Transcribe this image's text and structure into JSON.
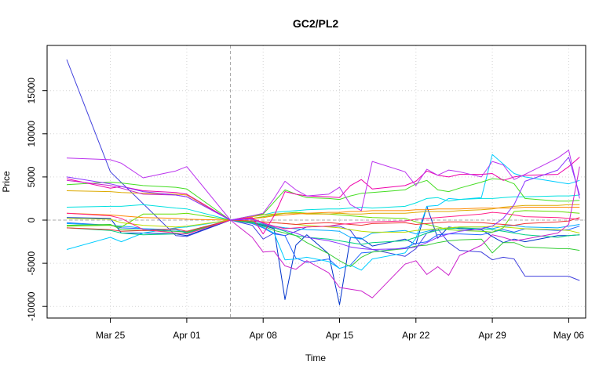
{
  "chart_data": {
    "type": "line",
    "title": "GC2/PL2",
    "xlabel": "Time",
    "ylabel": "Price",
    "x_ticks": [
      "Mar 25",
      "Apr 01",
      "Apr 08",
      "Apr 15",
      "Apr 22",
      "Apr 29",
      "May 06"
    ],
    "y_ticks": [
      -10000,
      -5000,
      0,
      5000,
      10000,
      15000
    ],
    "ylim": [
      -11500,
      20500
    ],
    "grid": true,
    "reference_lines": {
      "vertical_at": "Apr 05",
      "horizontal_at": 0
    },
    "x": [
      "Mar 21",
      "Mar 24",
      "Mar 25",
      "Mar 26",
      "Mar 27",
      "Mar 28",
      "Mar 31",
      "Apr 01",
      "Apr 02",
      "Apr 03",
      "Apr 04",
      "Apr 05",
      "Apr 07",
      "Apr 08",
      "Apr 09",
      "Apr 10",
      "Apr 11",
      "Apr 12",
      "Apr 14",
      "Apr 15",
      "Apr 16",
      "Apr 17",
      "Apr 18",
      "Apr 21",
      "Apr 22",
      "Apr 23",
      "Apr 24",
      "Apr 25",
      "Apr 26",
      "Apr 28",
      "Apr 29",
      "Apr 30",
      "May 01",
      "May 02",
      "May 05",
      "May 06",
      "May 07"
    ],
    "series": [
      {
        "color": "#4040dd",
        "values": [
          18600,
          null,
          5600,
          null,
          null,
          null,
          -1800,
          -1900,
          null,
          null,
          null,
          0,
          -600,
          -2200,
          -1500,
          -1800,
          -1300,
          -800,
          -700,
          -700,
          -1200,
          -2900,
          -3400,
          -4200,
          -3300,
          -1500,
          -1000,
          -2600,
          -3500,
          -3700,
          -4600,
          -4300,
          -4500,
          -6500,
          -6500,
          -6500,
          -7000
        ]
      },
      {
        "color": "#0033cc",
        "values": [
          300,
          null,
          200,
          -1500,
          null,
          -1500,
          -1600,
          -1800,
          null,
          null,
          null,
          0,
          -300,
          -600,
          -1000,
          -9200,
          -2900,
          -1700,
          -3900,
          -9800,
          -2000,
          -2100,
          -3000,
          -2200,
          -2800,
          1600,
          -2100,
          -800,
          -1000,
          -1100,
          -1900,
          -2600,
          -2200,
          -2500,
          -1800,
          -1800,
          -1700
        ]
      },
      {
        "color": "#2266ff",
        "values": [
          -300,
          null,
          -600,
          -900,
          null,
          -1000,
          -1300,
          -1300,
          null,
          null,
          null,
          0,
          -400,
          -900,
          -1600,
          -1800,
          -4400,
          -4900,
          -4500,
          -5600,
          -5200,
          -3800,
          -3700,
          -3200,
          -2700,
          -2500,
          -1700,
          -1600,
          -1600,
          -1700,
          -1400,
          -1100,
          -1400,
          -1000,
          -1200,
          -1100,
          -700
        ]
      },
      {
        "color": "#00aaff",
        "values": [
          -400,
          null,
          -600,
          null,
          -800,
          -1000,
          -1100,
          -1500,
          null,
          null,
          null,
          0,
          -200,
          -500,
          -700,
          -900,
          -1000,
          -1100,
          -1200,
          -1300,
          -2000,
          -2200,
          -1500,
          -1200,
          -1600,
          -1300,
          -1000,
          -900,
          -800,
          -800,
          -1000,
          -700,
          -600,
          -800,
          -900,
          -700,
          -500
        ]
      },
      {
        "color": "#00ccff",
        "values": [
          -3400,
          null,
          -2000,
          -2500,
          null,
          -1500,
          -900,
          -800,
          null,
          null,
          null,
          0,
          -300,
          -800,
          -1500,
          -4600,
          -4500,
          -4300,
          -4800,
          -5600,
          -5200,
          -5800,
          -4500,
          -3800,
          -2100,
          1600,
          1700,
          2500,
          2400,
          2600,
          7600,
          6500,
          5400,
          5000,
          4400,
          4200,
          4600
        ]
      },
      {
        "color": "#00e0e0",
        "values": [
          1500,
          null,
          1600,
          1600,
          null,
          1800,
          1400,
          1300,
          null,
          null,
          null,
          0,
          500,
          600,
          900,
          1000,
          1100,
          1200,
          1300,
          1300,
          1400,
          1500,
          1400,
          1600,
          2000,
          2500,
          2600,
          2200,
          2400,
          2500,
          2500,
          2600,
          2700,
          2700,
          2800,
          2800,
          2900
        ]
      },
      {
        "color": "#00d080",
        "values": [
          -900,
          null,
          -1200,
          -1500,
          null,
          -1700,
          -1600,
          -1500,
          null,
          null,
          null,
          0,
          -200,
          -500,
          -900,
          -1300,
          -1800,
          -2000,
          -2200,
          -2400,
          -2600,
          -2800,
          -2600,
          -2400,
          -2000,
          -1500,
          -1200,
          -1000,
          -900,
          -1000,
          -1100,
          -1300,
          -1500,
          -1700,
          -2000,
          -1800,
          -1700
        ]
      },
      {
        "color": "#33cc33",
        "values": [
          -600,
          null,
          -500,
          -1100,
          null,
          -1200,
          -1300,
          -1400,
          null,
          null,
          null,
          0,
          -300,
          -700,
          -1200,
          -1500,
          -1800,
          -2600,
          -3900,
          -4700,
          -5400,
          -4300,
          -3700,
          -3300,
          -3000,
          -2900,
          -2600,
          -2400,
          -2300,
          -2200,
          -3800,
          -2600,
          -2600,
          -3100,
          -3300,
          -3300,
          -3500
        ]
      },
      {
        "color": "#44dd22",
        "values": [
          4100,
          null,
          4400,
          4300,
          null,
          4000,
          3800,
          3600,
          null,
          null,
          null,
          0,
          500,
          700,
          2100,
          3500,
          3000,
          2600,
          2500,
          2400,
          2800,
          3100,
          3200,
          3500,
          4200,
          4600,
          3500,
          3300,
          3700,
          4400,
          4800,
          4700,
          4200,
          2500,
          2200,
          2200,
          2300
        ]
      },
      {
        "color": "#66dd00",
        "values": [
          -700,
          null,
          -600,
          -800,
          null,
          700,
          700,
          800,
          null,
          null,
          null,
          0,
          200,
          400,
          600,
          800,
          900,
          800,
          700,
          600,
          500,
          400,
          300,
          200,
          -200,
          -500,
          -800,
          -1100,
          -1200,
          -1300,
          -1400,
          -900,
          1000,
          1100,
          1000,
          900,
          800
        ]
      },
      {
        "color": "#bbdd00",
        "values": [
          200,
          null,
          100,
          -300,
          null,
          -600,
          -800,
          -700,
          null,
          null,
          null,
          0,
          -100,
          -200,
          -300,
          -400,
          -500,
          -600,
          -800,
          -900,
          -1100,
          -1300,
          -1400,
          -1400,
          -1200,
          -1100,
          -1000,
          -900,
          -800,
          -800,
          -700,
          -800,
          -900,
          -1000,
          -1100,
          -1200,
          -1500
        ]
      },
      {
        "color": "#ddaa00",
        "values": [
          3400,
          null,
          3300,
          3200,
          null,
          3100,
          3000,
          2900,
          null,
          null,
          null,
          0,
          400,
          600,
          700,
          800,
          800,
          700,
          700,
          800,
          700,
          700,
          800,
          800,
          900,
          1000,
          1000,
          1000,
          1100,
          1200,
          1300,
          1500,
          1600,
          1700,
          1700,
          1800,
          1800
        ]
      },
      {
        "color": "#ff8800",
        "values": [
          800,
          null,
          600,
          500,
          null,
          300,
          200,
          100,
          null,
          null,
          null,
          0,
          200,
          300,
          500,
          600,
          700,
          800,
          900,
          900,
          1000,
          1000,
          1100,
          1100,
          1200,
          1200,
          1300,
          1300,
          1300,
          1400,
          1400,
          1400,
          1400,
          1500,
          1500,
          1500,
          1500
        ]
      },
      {
        "color": "#ee3333",
        "values": [
          -900,
          null,
          -1100,
          -1300,
          null,
          -1200,
          -1000,
          -1300,
          null,
          null,
          null,
          0,
          -100,
          -200,
          -300,
          -400,
          -500,
          -400,
          -300,
          -400,
          -500,
          -600,
          -400,
          -300,
          -500,
          -400,
          -300,
          -200,
          -200,
          -300,
          -400,
          -500,
          -600,
          -400,
          -200,
          -100,
          300
        ]
      },
      {
        "color": "#ff2288",
        "values": [
          800,
          null,
          500,
          200,
          null,
          -1100,
          -1500,
          -1600,
          null,
          null,
          null,
          0,
          200,
          -300,
          -700,
          -1000,
          -900,
          -800,
          -700,
          -500,
          -400,
          -300,
          -200,
          -100,
          100,
          200,
          300,
          400,
          500,
          700,
          900,
          800,
          600,
          400,
          300,
          200,
          100
        ]
      },
      {
        "color": "#ee00aa",
        "values": [
          4800,
          null,
          3700,
          3900,
          null,
          3400,
          3200,
          3000,
          null,
          null,
          null,
          0,
          300,
          -1600,
          500,
          3300,
          3000,
          2800,
          2700,
          2600,
          4000,
          4700,
          3600,
          4000,
          4500,
          5700,
          5200,
          5000,
          5300,
          5300,
          5400,
          4600,
          5000,
          5200,
          5300,
          6200,
          7300
        ]
      },
      {
        "color": "#cc22cc",
        "values": [
          4600,
          null,
          4000,
          3700,
          null,
          3000,
          2900,
          2700,
          null,
          null,
          null,
          0,
          -2000,
          -3700,
          -3600,
          -5300,
          -5700,
          -4700,
          -6100,
          -7800,
          -8000,
          -8200,
          -9000,
          -5100,
          -4700,
          -6300,
          -5400,
          -6400,
          -4100,
          -2900,
          -1700,
          -2000,
          -2400,
          -2200,
          -1500,
          -500,
          6200
        ]
      },
      {
        "color": "#bb33ee",
        "values": [
          7200,
          null,
          7000,
          6600,
          null,
          4900,
          5700,
          6200,
          null,
          null,
          null,
          0,
          500,
          800,
          2500,
          4500,
          3500,
          2800,
          3000,
          3800,
          1800,
          1100,
          6800,
          5600,
          4000,
          5900,
          5200,
          5800,
          5600,
          5000,
          6800,
          6400,
          4700,
          5300,
          7200,
          8100,
          2500
        ]
      },
      {
        "color": "#8833ff",
        "values": [
          5000,
          null,
          4200,
          3900,
          null,
          3300,
          2900,
          2700,
          null,
          null,
          null,
          0,
          100,
          -400,
          -800,
          -1200,
          -1500,
          -2000,
          -2400,
          -2700,
          -3100,
          -3300,
          -3400,
          -3300,
          -3100,
          -2600,
          -2000,
          -1600,
          -1300,
          -1000,
          -700,
          200,
          1800,
          4500,
          5800,
          7300,
          2900
        ]
      }
    ]
  }
}
